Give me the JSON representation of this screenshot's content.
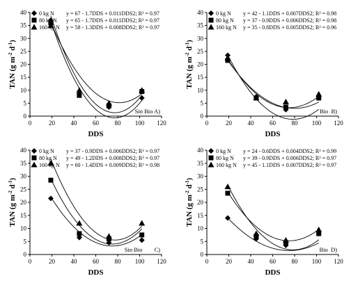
{
  "chart_data": [
    {
      "type": "scatter",
      "panel_label": "Sin Bio A)",
      "xlabel": "DDS",
      "ylabel": "TAN (g m",
      "ylabel_sup": "-2",
      "ylabel_mid": " d",
      "ylabel_sup2": "-1",
      "ylabel_end": ")",
      "xlim": [
        0,
        120
      ],
      "ylim": [
        0,
        40
      ],
      "x_ticks": [
        "0",
        "20",
        "40",
        "60",
        "80",
        "100",
        "120"
      ],
      "y_ticks": [
        "0",
        "5",
        "10",
        "15",
        "20",
        "25",
        "30",
        "35",
        "40"
      ],
      "series": [
        {
          "name": "0 kg N",
          "marker": "diamond",
          "equation": "y = 67 - 1.7DDS + 0.011DDS2; R² = 0.97",
          "x": [
            19,
            45,
            72,
            102
          ],
          "y": [
            37,
            8.5,
            3.5,
            7
          ],
          "fit": [
            67,
            -1.7,
            0.011
          ]
        },
        {
          "name": "80 kg N",
          "marker": "square",
          "equation": "y = 65 - 1.7DDS + 0.011DDS2; R² = 0.97",
          "x": [
            19,
            45,
            72,
            102
          ],
          "y": [
            36,
            8,
            4,
            9.5
          ],
          "fit": [
            65,
            -1.7,
            0.011
          ]
        },
        {
          "name": "160 kg N",
          "marker": "triangle",
          "equation": "y = 58 - 1.3DDS + 0.008DDS2; R² = 0.97",
          "x": [
            19,
            45,
            72,
            102
          ],
          "y": [
            35,
            10,
            5,
            10
          ],
          "fit": [
            58,
            -1.3,
            0.008
          ]
        }
      ]
    },
    {
      "type": "scatter",
      "panel_label": "Bio  B)",
      "xlabel": "DDS",
      "ylabel": "TAN (g m",
      "ylabel_sup": "-2",
      "ylabel_mid": " d",
      "ylabel_sup2": "-1",
      "ylabel_end": ")",
      "xlim": [
        0,
        120
      ],
      "ylim": [
        0,
        40
      ],
      "x_ticks": [
        "0",
        "20",
        "40",
        "60",
        "80",
        "100",
        "120"
      ],
      "y_ticks": [
        "0",
        "5",
        "10",
        "15",
        "20",
        "25",
        "30",
        "35",
        "40"
      ],
      "series": [
        {
          "name": "0 kg N",
          "marker": "diamond",
          "equation": "y = 42 - 1.1DDS + 0.007DDS2; R² = 0.98",
          "x": [
            19,
            45,
            72,
            102
          ],
          "y": [
            23.5,
            7.5,
            2.5,
            7
          ],
          "fit": [
            42,
            -1.1,
            0.007
          ]
        },
        {
          "name": "80 kg N",
          "marker": "square",
          "equation": "y = 37 - 0.9DDS + 0.006DDS2; R² = 0.98",
          "x": [
            19,
            45,
            72,
            102
          ],
          "y": [
            21.5,
            7,
            3.5,
            7
          ],
          "fit": [
            37,
            -0.9,
            0.006
          ]
        },
        {
          "name": "160 kg N",
          "marker": "triangle",
          "equation": "y = 35 - 0.8DDS + 0.005DDS2; R² = 0.96",
          "x": [
            19,
            45,
            72,
            102
          ],
          "y": [
            22.5,
            7,
            5.5,
            8.5
          ],
          "fit": [
            35,
            -0.8,
            0.005
          ]
        }
      ]
    },
    {
      "type": "scatter",
      "panel_label": "Sin Bio        C)",
      "xlabel": "DDS",
      "ylabel": "TAN (g m",
      "ylabel_sup": "-2",
      "ylabel_mid": " d",
      "ylabel_sup2": "-1",
      "ylabel_end": ")",
      "xlim": [
        0,
        120
      ],
      "ylim": [
        0,
        40
      ],
      "x_ticks": [
        "0",
        "20",
        "40",
        "60",
        "80",
        "100",
        "120"
      ],
      "y_ticks": [
        "0",
        "5",
        "10",
        "15",
        "20",
        "25",
        "30",
        "35",
        "40"
      ],
      "series": [
        {
          "name": "0 kg N",
          "marker": "diamond",
          "equation": "y = 37 - 0.9DDS + 0.006DDS2; R² = 0.97",
          "x": [
            19,
            45,
            72,
            102
          ],
          "y": [
            21.5,
            6.5,
            4.5,
            5.5
          ],
          "fit": [
            37,
            -0.9,
            0.006
          ]
        },
        {
          "name": "80 kg N",
          "marker": "square",
          "equation": "y = 49 - 1.2DDS + 0.008DDS2; R² = 0.97",
          "x": [
            19,
            45,
            72,
            102
          ],
          "y": [
            28.5,
            8,
            6,
            7.5
          ],
          "fit": [
            49,
            -1.2,
            0.008
          ]
        },
        {
          "name": "160 kg N",
          "marker": "triangle",
          "equation": "y = 60 - 1.4DDS + 0.009DDS2; R² = 0.98",
          "x": [
            19,
            45,
            72,
            102
          ],
          "y": [
            35,
            12,
            7,
            12
          ],
          "fit": [
            60,
            -1.4,
            0.009
          ]
        }
      ]
    },
    {
      "type": "scatter",
      "panel_label": "Bio  D)",
      "xlabel": "DDS",
      "ylabel": "TAN (g m",
      "ylabel_sup": "-2",
      "ylabel_mid": " d",
      "ylabel_sup2": "-1",
      "ylabel_end": ")",
      "xlim": [
        0,
        120
      ],
      "ylim": [
        0,
        40
      ],
      "x_ticks": [
        "0",
        "20",
        "40",
        "60",
        "80",
        "100",
        "120"
      ],
      "y_ticks": [
        "0",
        "5",
        "10",
        "15",
        "20",
        "25",
        "30",
        "35",
        "40"
      ],
      "series": [
        {
          "name": "0 kg N",
          "marker": "diamond",
          "equation": "y = 24 - 0.6DDS + 0.004DDS2; R² = 0.99",
          "x": [
            19,
            45,
            72,
            102
          ],
          "y": [
            14,
            6,
            3.5,
            8
          ],
          "fit": [
            24,
            -0.6,
            0.004
          ]
        },
        {
          "name": "80 kg N",
          "marker": "square",
          "equation": "y = 39 - 0.9DDS + 0.006DDS2; R² = 0.97",
          "x": [
            19,
            45,
            72,
            102
          ],
          "y": [
            23.5,
            7,
            4.5,
            8
          ],
          "fit": [
            39,
            -0.9,
            0.006
          ]
        },
        {
          "name": "160 kg N",
          "marker": "triangle",
          "equation": "y = 45 - 1.1DDS + 0.007DDS2; R² = 0.97",
          "x": [
            19,
            45,
            72,
            102
          ],
          "y": [
            26,
            8,
            5.5,
            9.5
          ],
          "fit": [
            45,
            -1.1,
            0.007
          ]
        }
      ]
    }
  ]
}
